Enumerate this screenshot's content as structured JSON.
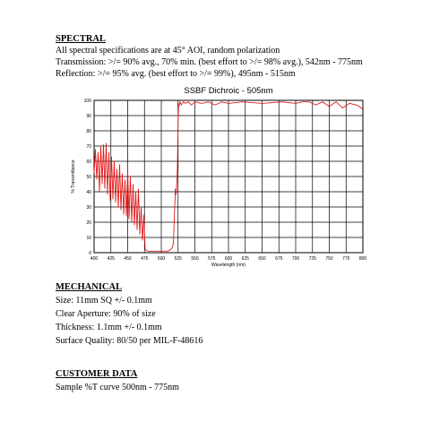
{
  "spectral": {
    "heading": "SPECTRAL",
    "lines": [
      "All spectral specifications are at 45° AOI, random polarization",
      "Transmission: >/= 90% avg., 70% min. (best effort to >/= 98% avg.), 542nm - 775nm",
      "Reflection: >/= 95% avg. (best effort to >/= 99%), 495nm - 515nm"
    ]
  },
  "chart_data": {
    "type": "line",
    "title": "SSBF Dichroic - 505nm",
    "xlabel": "Wavelength (nm)",
    "ylabel": "% Transmittance",
    "xlim": [
      400,
      800
    ],
    "ylim": [
      0,
      100
    ],
    "x_ticks": [
      "400",
      "425",
      "450",
      "475",
      "500",
      "525",
      "550",
      "575",
      "600",
      "625",
      "650",
      "675",
      "700",
      "725",
      "750",
      "775",
      "800"
    ],
    "y_ticks": [
      "0",
      "10",
      "20",
      "30",
      "40",
      "50",
      "60",
      "70",
      "80",
      "90",
      "100"
    ],
    "grid": true,
    "line_color": "#e31b1b",
    "series": [
      {
        "x": [
          400,
          402,
          404,
          406,
          408,
          410,
          412,
          414,
          416,
          418,
          420,
          422,
          424,
          426,
          428,
          430,
          432,
          434,
          436,
          438,
          440,
          442,
          444,
          446,
          448,
          450,
          452,
          454,
          456,
          458,
          460,
          462,
          464,
          466,
          468,
          470,
          472,
          474,
          476,
          480,
          485,
          490,
          495,
          500,
          505,
          510,
          514,
          516,
          518,
          520,
          521,
          522,
          523,
          524,
          525,
          526,
          527,
          528,
          530,
          533,
          536,
          540,
          545,
          550,
          560,
          570,
          580,
          590,
          600,
          620,
          650,
          680,
          700,
          710,
          720,
          730,
          740,
          750,
          760,
          770,
          780,
          790,
          795,
          800
        ],
        "y": [
          52,
          68,
          48,
          66,
          40,
          70,
          45,
          71,
          42,
          72,
          38,
          66,
          34,
          63,
          35,
          60,
          33,
          55,
          30,
          58,
          28,
          52,
          25,
          48,
          24,
          55,
          22,
          50,
          20,
          45,
          18,
          40,
          15,
          42,
          12,
          30,
          8,
          25,
          2,
          1,
          1,
          1,
          1,
          1,
          1,
          1,
          2,
          3,
          6,
          30,
          42,
          38,
          45,
          55,
          85,
          98,
          97,
          99,
          97,
          99,
          98,
          99,
          97,
          99,
          98,
          99,
          97,
          99,
          98,
          99,
          98,
          99,
          98,
          99,
          99,
          97,
          99,
          96,
          99,
          95,
          98,
          97,
          96,
          94
        ]
      }
    ]
  },
  "mechanical": {
    "heading": "MECHANICAL",
    "lines": [
      "Size: 11mm SQ +/- 0.1mm",
      "Clear Aperture:  90% of size",
      "Thickness: 1.1mm +/- 0.1mm",
      "Surface Quality: 80/50 per MIL-F-48616"
    ]
  },
  "customer": {
    "heading": "CUSTOMER DATA",
    "lines": [
      "Sample %T curve 500nm - 775nm"
    ]
  }
}
